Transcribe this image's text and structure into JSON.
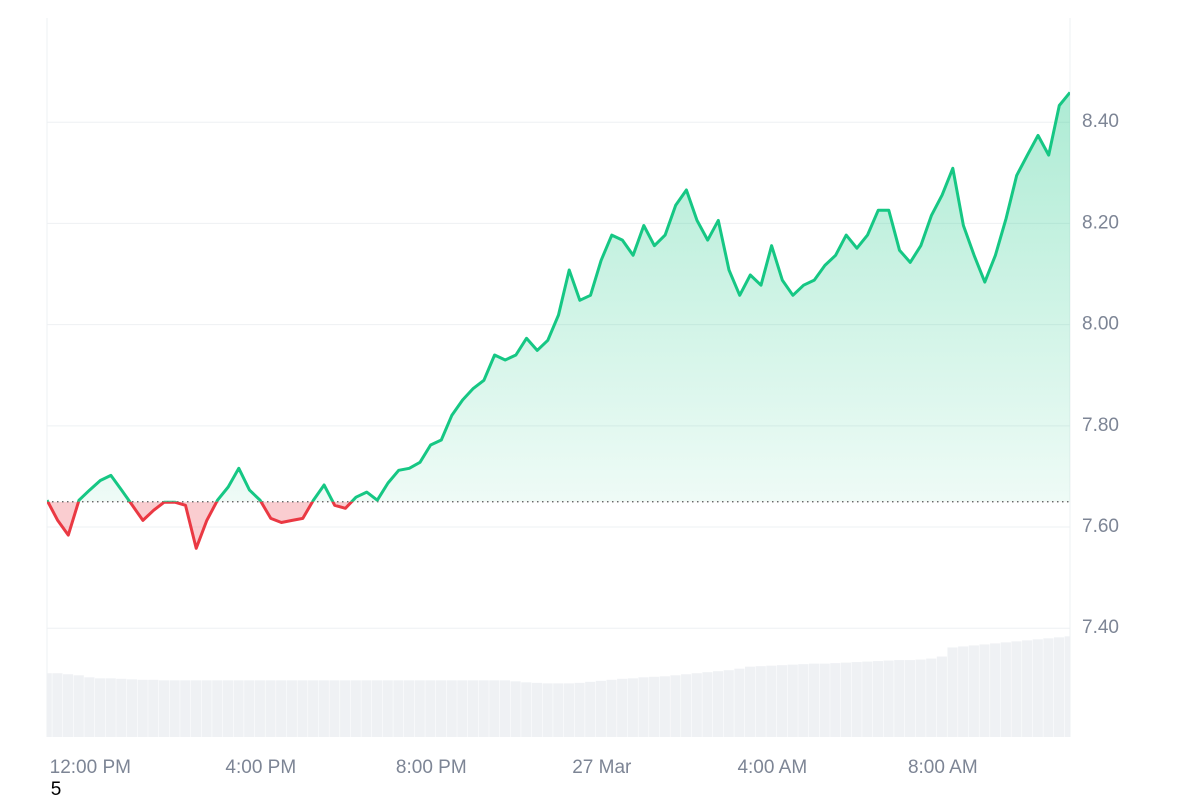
{
  "chart_data": {
    "type": "line",
    "series": [
      {
        "name": "price",
        "color": "#16c784",
        "down_color": "#ea3943",
        "values": [
          7.653,
          7.613,
          7.584,
          7.653,
          7.673,
          7.692,
          7.702,
          7.673,
          7.643,
          7.613,
          7.633,
          7.649,
          7.649,
          7.643,
          7.558,
          7.613,
          7.653,
          7.679,
          7.716,
          7.673,
          7.653,
          7.617,
          7.609,
          7.613,
          7.617,
          7.653,
          7.683,
          7.643,
          7.637,
          7.659,
          7.669,
          7.653,
          7.687,
          7.712,
          7.716,
          7.728,
          7.762,
          7.772,
          7.821,
          7.851,
          7.874,
          7.89,
          7.94,
          7.93,
          7.94,
          7.973,
          7.949,
          7.969,
          8.019,
          8.108,
          8.048,
          8.058,
          8.127,
          8.177,
          8.167,
          8.137,
          8.196,
          8.156,
          8.177,
          8.236,
          8.266,
          8.206,
          8.167,
          8.206,
          8.108,
          8.058,
          8.098,
          8.078,
          8.156,
          8.088,
          8.058,
          8.078,
          8.088,
          8.117,
          8.137,
          8.177,
          8.151,
          8.177,
          8.226,
          8.226,
          8.147,
          8.123,
          8.156,
          8.216,
          8.256,
          8.309,
          8.196,
          8.137,
          8.084,
          8.137,
          8.21,
          8.295,
          8.335,
          8.374,
          8.335,
          8.433,
          8.459
        ]
      },
      {
        "name": "volume",
        "color": "#eff1f4",
        "values": [
          7.311,
          7.311,
          7.309,
          7.307,
          7.303,
          7.301,
          7.301,
          7.3,
          7.299,
          7.298,
          7.298,
          7.297,
          7.297,
          7.297,
          7.297,
          7.297,
          7.297,
          7.297,
          7.297,
          7.297,
          7.297,
          7.297,
          7.297,
          7.297,
          7.297,
          7.297,
          7.297,
          7.297,
          7.297,
          7.297,
          7.297,
          7.297,
          7.297,
          7.297,
          7.297,
          7.297,
          7.297,
          7.297,
          7.297,
          7.297,
          7.297,
          7.297,
          7.297,
          7.297,
          7.295,
          7.293,
          7.292,
          7.291,
          7.291,
          7.291,
          7.292,
          7.294,
          7.296,
          7.298,
          7.3,
          7.301,
          7.303,
          7.304,
          7.305,
          7.307,
          7.309,
          7.311,
          7.313,
          7.315,
          7.317,
          7.32,
          7.324,
          7.325,
          7.326,
          7.327,
          7.328,
          7.329,
          7.33,
          7.33,
          7.331,
          7.332,
          7.333,
          7.334,
          7.335,
          7.336,
          7.337,
          7.337,
          7.338,
          7.34,
          7.344,
          7.362,
          7.364,
          7.366,
          7.368,
          7.37,
          7.372,
          7.374,
          7.376,
          7.378,
          7.38,
          7.382,
          7.384
        ]
      }
    ],
    "baseline": 7.65,
    "xlim": [
      0,
      96
    ],
    "xticks": [
      {
        "value": 2,
        "label": "12:00 PM"
      },
      {
        "value": 18,
        "label": "4:00 PM"
      },
      {
        "value": 34,
        "label": "8:00 PM"
      },
      {
        "value": 50,
        "label": "27 Mar"
      },
      {
        "value": 66,
        "label": "4:00 AM"
      },
      {
        "value": 82,
        "label": "8:00 AM"
      }
    ],
    "ylim": [
      7.185,
      8.606
    ],
    "yticks": [
      {
        "value": 7.4,
        "label": "7.40"
      },
      {
        "value": 7.6,
        "label": "7.60"
      },
      {
        "value": 7.8,
        "label": "7.80"
      },
      {
        "value": 8.0,
        "label": "8.00"
      },
      {
        "value": 8.2,
        "label": "8.20"
      },
      {
        "value": 8.4,
        "label": "8.40"
      }
    ],
    "grid": true,
    "note": "5"
  }
}
